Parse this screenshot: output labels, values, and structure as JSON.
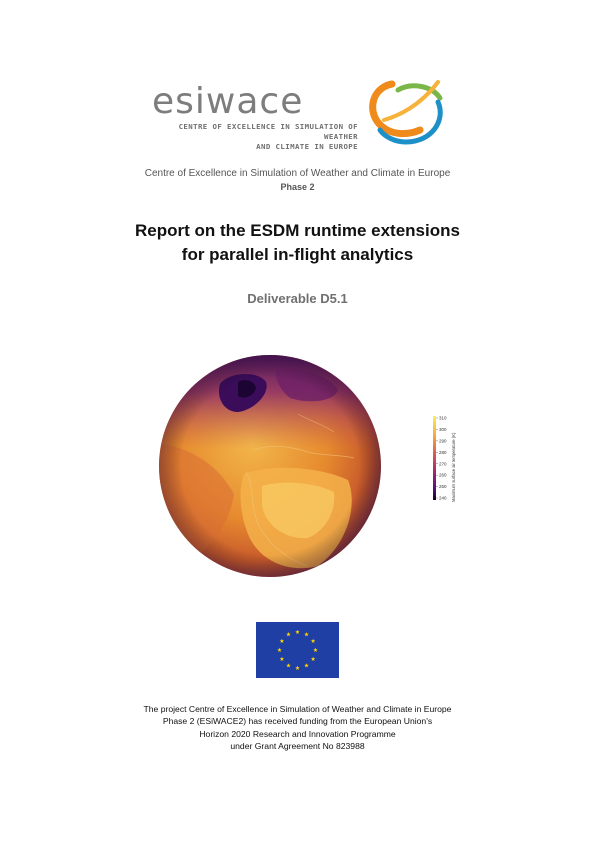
{
  "logo": {
    "wordmark": "esiwace",
    "tagline_1": "CENTRE OF EXCELLENCE IN SIMULATION OF WEATHER",
    "tagline_2": "AND CLIMATE IN EUROPE"
  },
  "header": {
    "centre_line": "Centre of Excellence in Simulation of Weather and Climate in Europe",
    "phase_line": "Phase 2"
  },
  "title": {
    "line_1": "Report on the ESDM runtime extensions",
    "line_2": "for parallel in-flight analytics"
  },
  "deliverable": "Deliverable D5.1",
  "colorbar": {
    "label": "Maximum surface air temperature (K)",
    "ticks": [
      "310",
      "300",
      "290",
      "280",
      "270",
      "260",
      "250",
      "240"
    ]
  },
  "funding": {
    "line_1": "The project Centre of Excellence in Simulation of Weather and Climate in Europe",
    "line_2": "Phase 2 (ESiWACE2) has received funding from the European Union's",
    "line_3": "Horizon 2020 Research and Innovation Programme",
    "line_4": "under Grant Agreement No 823988"
  },
  "colors": {
    "flag_blue": "#1f3fa5",
    "flag_star": "#ffd500",
    "globe_warm": "#e8922f",
    "globe_cold": "#3a0c5a"
  }
}
